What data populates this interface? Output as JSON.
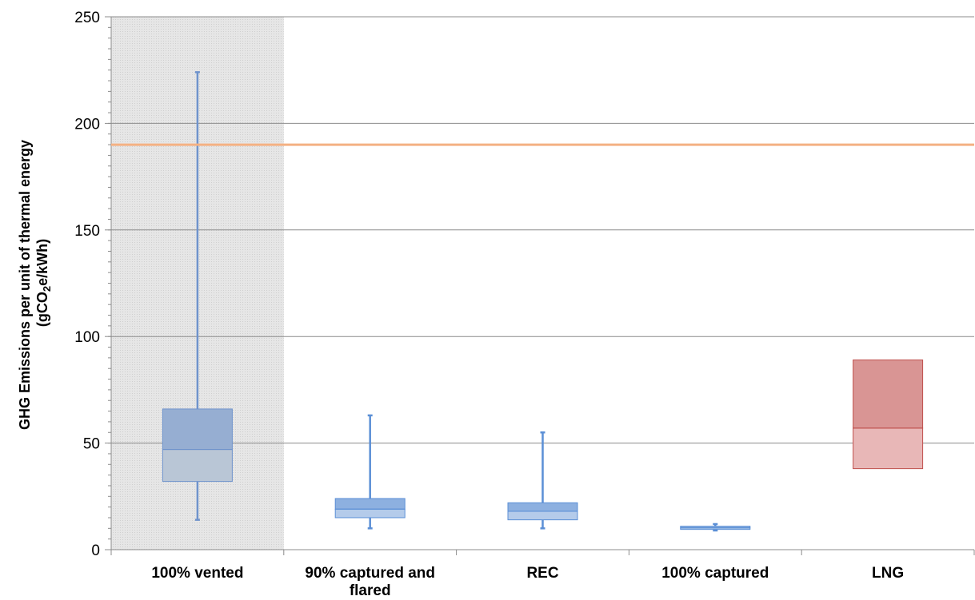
{
  "chart_data": {
    "type": "boxplot",
    "title": "",
    "ylabel_line1": "GHG Emissions per unit of thermal energy",
    "ylabel_line2": "(gCO2e/kWh)",
    "ylim": [
      0,
      250
    ],
    "yticks": [
      0,
      50,
      100,
      150,
      200,
      250
    ],
    "grid": true,
    "categories": [
      "100% vented",
      "90% captured and\nflared",
      "REC",
      "100% captured",
      "LNG"
    ],
    "shaded_region_category": "100% vented",
    "reference_line": {
      "value": 190,
      "color": "#f4b183"
    },
    "boxes": [
      {
        "category": "100% vented",
        "min": 14,
        "q1": 32,
        "median": 47,
        "q3": 66,
        "max": 224,
        "color_upper": "#96aed2",
        "color_lower": "#b9c6d6",
        "edge": "#6f93cc"
      },
      {
        "category": "90% captured and flared",
        "min": 10,
        "q1": 15,
        "median": 19,
        "q3": 24,
        "max": 63,
        "color_upper": "#8db0e0",
        "color_lower": "#b4cbea",
        "edge": "#5b8fd6"
      },
      {
        "category": "REC",
        "min": 10,
        "q1": 14,
        "median": 18,
        "q3": 22,
        "max": 55,
        "color_upper": "#8db0e0",
        "color_lower": "#b4cbea",
        "edge": "#5b8fd6"
      },
      {
        "category": "100% captured",
        "min": 9,
        "q1": 9.5,
        "median": 10.2,
        "q3": 11,
        "max": 12,
        "color_upper": "#8db0e0",
        "color_lower": "#b4cbea",
        "edge": "#5b8fd6"
      },
      {
        "category": "LNG",
        "min": null,
        "q1": 38,
        "median": 57,
        "q3": 89,
        "max": null,
        "color_upper": "#d99594",
        "color_lower": "#e8b7b7",
        "edge": "#c0504d"
      }
    ]
  }
}
